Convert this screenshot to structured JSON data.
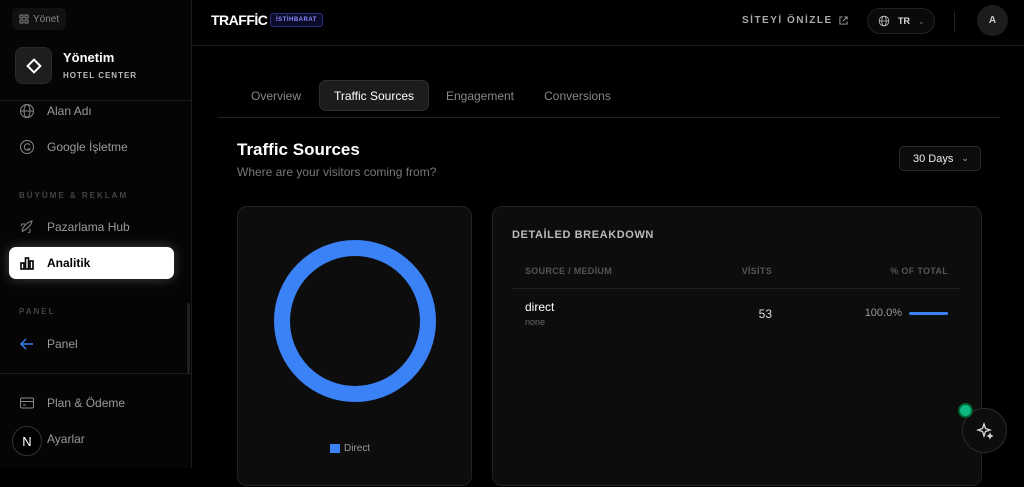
{
  "sidebar": {
    "top_button": "Yönet",
    "brand_title": "Yönetim",
    "brand_subtitle": "HOTEL CENTER",
    "items": [
      {
        "label": "Alan Adı",
        "icon": "globe-icon"
      },
      {
        "label": "Google İşletme",
        "icon": "google-icon"
      }
    ],
    "section_growth": "BÜYÜME & REKLAM",
    "growth_items": [
      {
        "label": "Pazarlama Hub",
        "icon": "rocket-icon"
      },
      {
        "label": "Analitik",
        "icon": "bar-chart-icon",
        "active": true
      }
    ],
    "section_panel": "PANEL",
    "panel_item": "Panel",
    "bottom_items": [
      {
        "label": "Plan & Ödeme",
        "icon": "credit-card-icon"
      },
      {
        "label": "Ayarlar",
        "icon": "settings-icon"
      }
    ],
    "n_badge": "N"
  },
  "header": {
    "logo": "TRAFFİC",
    "badge": "İSTİHBARAT",
    "preview": "SİTEYİ ÖNİZLE",
    "lang": "TR",
    "avatar": "A"
  },
  "tabs": [
    {
      "label": "Overview"
    },
    {
      "label": "Traffic Sources",
      "active": true
    },
    {
      "label": "Engagement"
    },
    {
      "label": "Conversions"
    }
  ],
  "page": {
    "title": "Traffic Sources",
    "subtitle": "Where are your visitors coming from?",
    "range": "30 Days"
  },
  "chart": {
    "legend": "Direct",
    "color": "#3b82f6"
  },
  "breakdown": {
    "title": "DETAİLED BREAKDOWN",
    "columns": [
      "SOURCE / MEDİUM",
      "VİSİTS",
      "% OF TOTAL"
    ],
    "rows": [
      {
        "source": "direct",
        "medium": "none",
        "visits": "53",
        "percent": "100.0%",
        "fraction": 1.0
      }
    ]
  },
  "colors": {
    "accent": "#3b82f6",
    "status": "#10b981"
  }
}
